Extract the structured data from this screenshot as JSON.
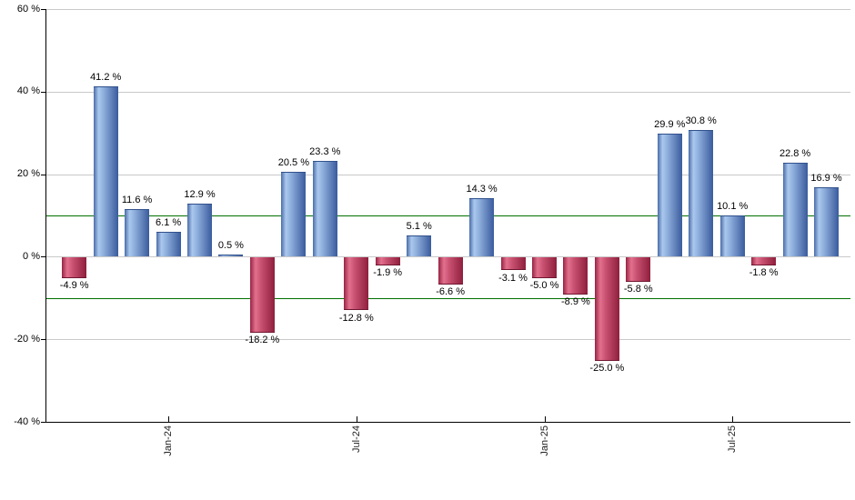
{
  "chart_data": {
    "type": "bar",
    "title": "",
    "unit": "%",
    "values": [
      -4.9,
      41.2,
      11.6,
      6.1,
      12.9,
      0.5,
      -18.2,
      20.5,
      23.3,
      -12.8,
      -1.9,
      5.1,
      -6.6,
      14.3,
      -3.1,
      -5.0,
      -8.9,
      -25.0,
      -5.8,
      29.9,
      30.8,
      10.1,
      -1.8,
      22.8,
      16.9
    ],
    "bar_labels": [
      "-4.9 %",
      "41.2 %",
      "11.6 %",
      "6.1 %",
      "12.9 %",
      "0.5 %",
      "-18.2 %",
      "20.5 %",
      "23.3 %",
      "-12.8 %",
      "-1.9 %",
      "5.1 %",
      "-6.6 %",
      "14.3 %",
      "-3.1 %",
      "-5.0 %",
      "-8.9 %",
      "-25.0 %",
      "-5.8 %",
      "29.9 %",
      "30.8 %",
      "10.1 %",
      "-1.8 %",
      "22.8 %",
      "16.9 %"
    ],
    "x_ticks": [
      {
        "bar_index": 3,
        "label": "Jan-24"
      },
      {
        "bar_index": 9,
        "label": "Jul-24"
      },
      {
        "bar_index": 15,
        "label": "Jan-25"
      },
      {
        "bar_index": 21,
        "label": "Jul-25"
      }
    ],
    "y_ticks": [
      {
        "value": 60,
        "label": "60 %"
      },
      {
        "value": 40,
        "label": "40 %"
      },
      {
        "value": 20,
        "label": "20 %"
      },
      {
        "value": 0,
        "label": "0 %"
      },
      {
        "value": -20,
        "label": "-20 %"
      },
      {
        "value": -40,
        "label": "-40 %"
      }
    ],
    "ylim": [
      -40,
      60
    ],
    "threshold_lines": [
      10,
      -10
    ],
    "grid": true,
    "legend": false,
    "colors": {
      "positive_bar_edge": "#3a5b9d",
      "positive_bar_light": "#abc8ee",
      "negative_bar_edge": "#8e1f3c",
      "negative_bar_light": "#e2718e",
      "threshold_line": "#007000",
      "gridline": "#c9c9c9",
      "axis": "#000000",
      "label_text": "#000000"
    }
  }
}
